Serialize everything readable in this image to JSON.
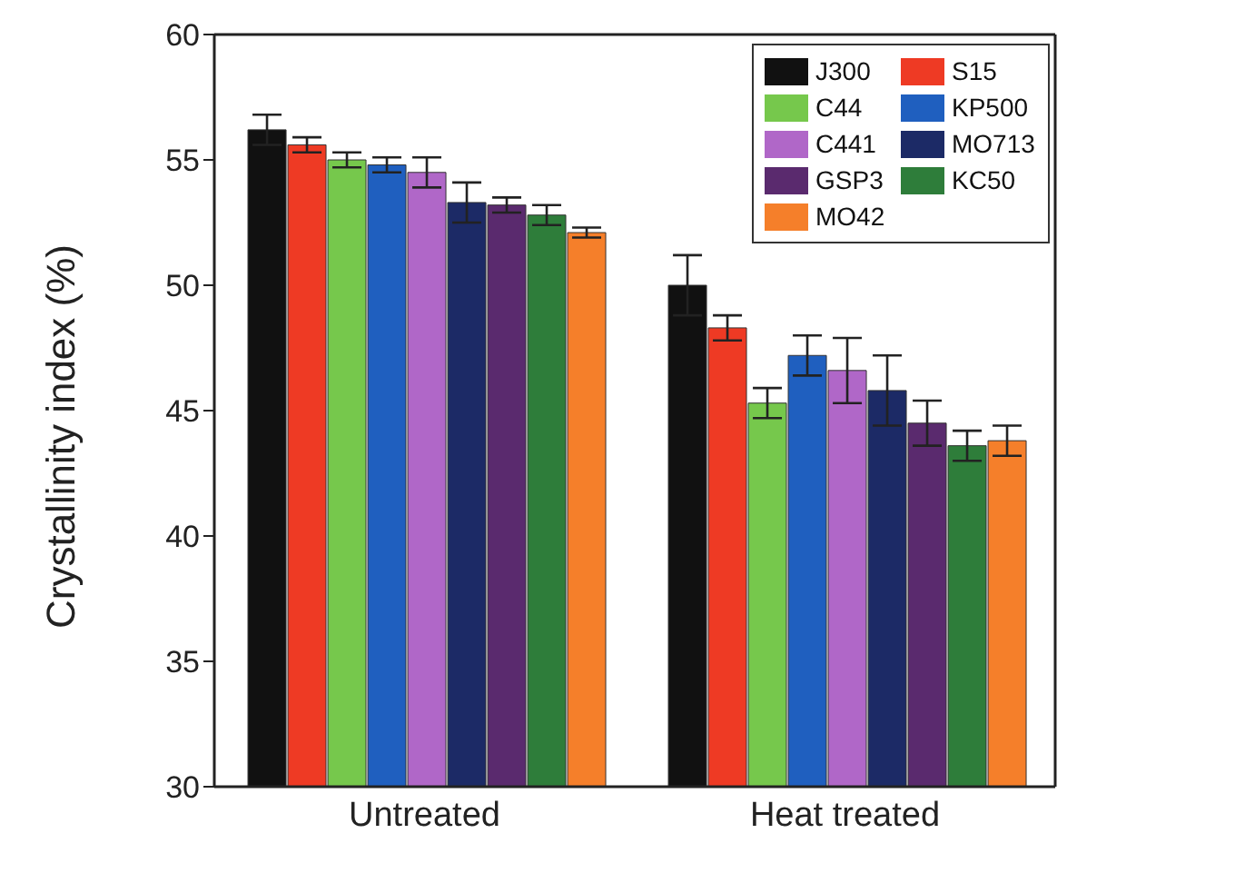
{
  "chart_data": {
    "type": "bar",
    "ylabel": "Crystallinity index (%)",
    "categories": [
      "Untreated",
      "Heat treated"
    ],
    "ylim": [
      30,
      60
    ],
    "yticks": [
      30,
      35,
      40,
      45,
      50,
      55,
      60
    ],
    "grid": false,
    "legend": "top right",
    "series": [
      {
        "name": "J300",
        "color": "#111111",
        "values": [
          56.2,
          50.0
        ],
        "errors": [
          0.6,
          1.2
        ]
      },
      {
        "name": "S15",
        "color": "#ee3a24",
        "values": [
          55.6,
          48.3
        ],
        "errors": [
          0.3,
          0.5
        ]
      },
      {
        "name": "C44",
        "color": "#76c84c",
        "values": [
          55.0,
          45.3
        ],
        "errors": [
          0.3,
          0.6
        ]
      },
      {
        "name": "KP500",
        "color": "#1f5fbf",
        "values": [
          54.8,
          47.2
        ],
        "errors": [
          0.3,
          0.8
        ]
      },
      {
        "name": "C441",
        "color": "#b067c8",
        "values": [
          54.5,
          46.6
        ],
        "errors": [
          0.6,
          1.3
        ]
      },
      {
        "name": "MO713",
        "color": "#1c2a66",
        "values": [
          53.3,
          45.8
        ],
        "errors": [
          0.8,
          1.4
        ]
      },
      {
        "name": "GSP3",
        "color": "#5a2a6e",
        "values": [
          53.2,
          44.5
        ],
        "errors": [
          0.3,
          0.9
        ]
      },
      {
        "name": "KC50",
        "color": "#2e7d3a",
        "values": [
          52.8,
          43.6
        ],
        "errors": [
          0.4,
          0.6
        ]
      },
      {
        "name": "MO42",
        "color": "#f57f2a",
        "values": [
          52.1,
          43.8
        ],
        "errors": [
          0.2,
          0.6
        ]
      }
    ]
  }
}
